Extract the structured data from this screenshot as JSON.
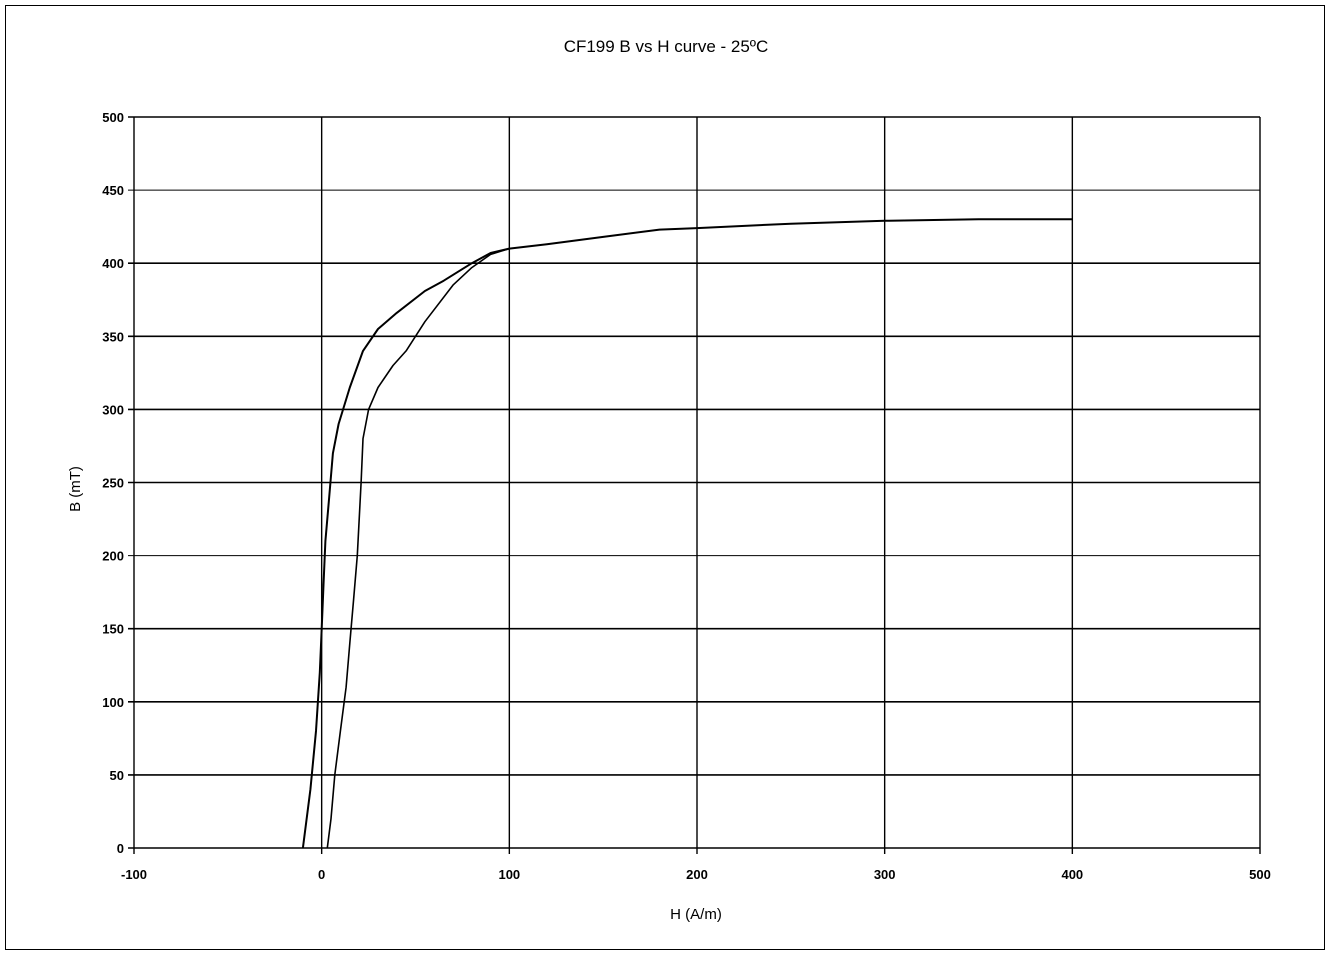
{
  "chart_data": {
    "type": "line",
    "title": "CF199  B vs H curve - 25ºC",
    "xlabel": "H (A/m)",
    "ylabel": "B (mT)",
    "xlim": [
      -100,
      500
    ],
    "ylim": [
      0,
      500
    ],
    "x_ticks": [
      -100,
      0,
      100,
      200,
      300,
      400,
      500
    ],
    "y_ticks": [
      0,
      50,
      100,
      150,
      200,
      250,
      300,
      350,
      400,
      450,
      500
    ],
    "x_tick_labels": [
      "-100",
      "0",
      "100",
      "200",
      "300",
      "400",
      "500"
    ],
    "y_tick_labels": [
      "0",
      "50",
      "100",
      "150",
      "200",
      "250",
      "300",
      "350",
      "400",
      "450",
      "500"
    ],
    "grid": true,
    "legend": "none",
    "colors": {
      "line": "#000000",
      "grid": "#000000",
      "background": "#ffffff"
    },
    "series": [
      {
        "points": [
          [
            -10,
            0
          ],
          [
            -6,
            40
          ],
          [
            -3,
            80
          ],
          [
            -1,
            120
          ],
          [
            0,
            150
          ],
          [
            1,
            180
          ],
          [
            2,
            210
          ],
          [
            4,
            240
          ],
          [
            6,
            270
          ],
          [
            9,
            290
          ],
          [
            15,
            315
          ],
          [
            22,
            340
          ],
          [
            30,
            355
          ],
          [
            40,
            366
          ],
          [
            55,
            381
          ],
          [
            65,
            388
          ],
          [
            80,
            400
          ],
          [
            90,
            407
          ],
          [
            100,
            410
          ],
          [
            120,
            413
          ],
          [
            150,
            418
          ],
          [
            180,
            423
          ],
          [
            200,
            424
          ],
          [
            250,
            427
          ],
          [
            300,
            429
          ],
          [
            350,
            430
          ],
          [
            400,
            430
          ]
        ]
      },
      {
        "points": [
          [
            3,
            0
          ],
          [
            5,
            20
          ],
          [
            7,
            50
          ],
          [
            10,
            80
          ],
          [
            13,
            110
          ],
          [
            15,
            140
          ],
          [
            17,
            170
          ],
          [
            19,
            200
          ],
          [
            21,
            250
          ],
          [
            22,
            280
          ],
          [
            25,
            300
          ],
          [
            30,
            315
          ],
          [
            38,
            330
          ],
          [
            45,
            340
          ],
          [
            55,
            360
          ],
          [
            70,
            385
          ],
          [
            80,
            397
          ],
          [
            90,
            406
          ],
          [
            100,
            410
          ]
        ]
      }
    ]
  }
}
